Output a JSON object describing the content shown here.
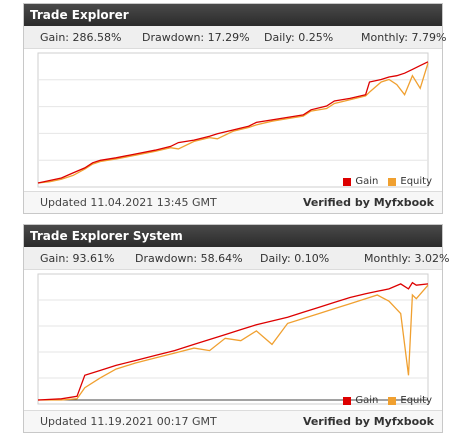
{
  "widgets": [
    {
      "title": "Trade Explorer",
      "stats": {
        "gain": "Gain: 286.58%",
        "drawdown": "Drawdown: 17.29%",
        "daily": "Daily: 0.25%",
        "monthly": "Monthly: 7.79%"
      },
      "updated": "Updated 11.04.2021 13:45 GMT",
      "verified": "Verified by Myfxbook",
      "legend": {
        "gain": "Gain",
        "equity": "Equity"
      }
    },
    {
      "title": "Trade Explorer System",
      "stats": {
        "gain": "Gain: 93.61%",
        "drawdown": "Drawdown: 58.64%",
        "daily": "Daily: 0.10%",
        "monthly": "Monthly: 3.02%"
      },
      "updated": "Updated 11.19.2021 00:17 GMT",
      "verified": "Verified by Myfxbook",
      "legend": {
        "gain": "Gain",
        "equity": "Equity"
      }
    }
  ],
  "colors": {
    "gain": "#dd0000",
    "equity": "#f0a030",
    "grid": "#e6e6e6",
    "baseline": "#444444"
  },
  "chart_data": [
    {
      "type": "line",
      "x": [
        0,
        0.03,
        0.06,
        0.09,
        0.12,
        0.14,
        0.16,
        0.2,
        0.25,
        0.3,
        0.34,
        0.36,
        0.4,
        0.44,
        0.46,
        0.5,
        0.54,
        0.56,
        0.6,
        0.64,
        0.68,
        0.7,
        0.74,
        0.76,
        0.8,
        0.84,
        0.85,
        0.88,
        0.9,
        0.92,
        0.94,
        0.96,
        0.98,
        1.0
      ],
      "series": [
        {
          "name": "Gain",
          "values": [
            0,
            2,
            4,
            8,
            12,
            16,
            18,
            20,
            23,
            26,
            29,
            32,
            34,
            37,
            39,
            42,
            45,
            48,
            50,
            52,
            54,
            58,
            61,
            65,
            67,
            70,
            80,
            82,
            84,
            85,
            87,
            90,
            93,
            96
          ]
        },
        {
          "name": "Equity",
          "values": [
            0,
            1,
            3,
            6,
            11,
            15,
            17,
            19,
            22,
            25,
            28,
            27,
            33,
            36,
            35,
            41,
            44,
            46,
            49,
            51,
            53,
            57,
            59,
            63,
            66,
            69,
            72,
            80,
            82,
            78,
            70,
            85,
            75,
            95
          ]
        }
      ],
      "legend_position": "bottom-right",
      "grid": true
    },
    {
      "type": "line",
      "x": [
        0,
        0.06,
        0.1,
        0.12,
        0.16,
        0.2,
        0.25,
        0.3,
        0.35,
        0.4,
        0.44,
        0.48,
        0.52,
        0.56,
        0.6,
        0.64,
        0.68,
        0.72,
        0.76,
        0.8,
        0.84,
        0.87,
        0.9,
        0.93,
        0.95,
        0.96,
        0.97,
        1.0
      ],
      "series": [
        {
          "name": "Gain",
          "values": [
            0,
            1,
            3,
            20,
            24,
            28,
            32,
            36,
            40,
            45,
            49,
            53,
            57,
            61,
            64,
            67,
            71,
            75,
            79,
            83,
            86,
            88,
            90,
            94,
            90,
            95,
            93,
            94
          ]
        },
        {
          "name": "Equity",
          "values": [
            0,
            0,
            1,
            10,
            18,
            25,
            30,
            34,
            38,
            42,
            40,
            50,
            48,
            56,
            45,
            62,
            66,
            70,
            74,
            78,
            82,
            85,
            80,
            70,
            20,
            85,
            82,
            93
          ]
        }
      ],
      "legend_position": "bottom-right",
      "grid": true
    }
  ]
}
